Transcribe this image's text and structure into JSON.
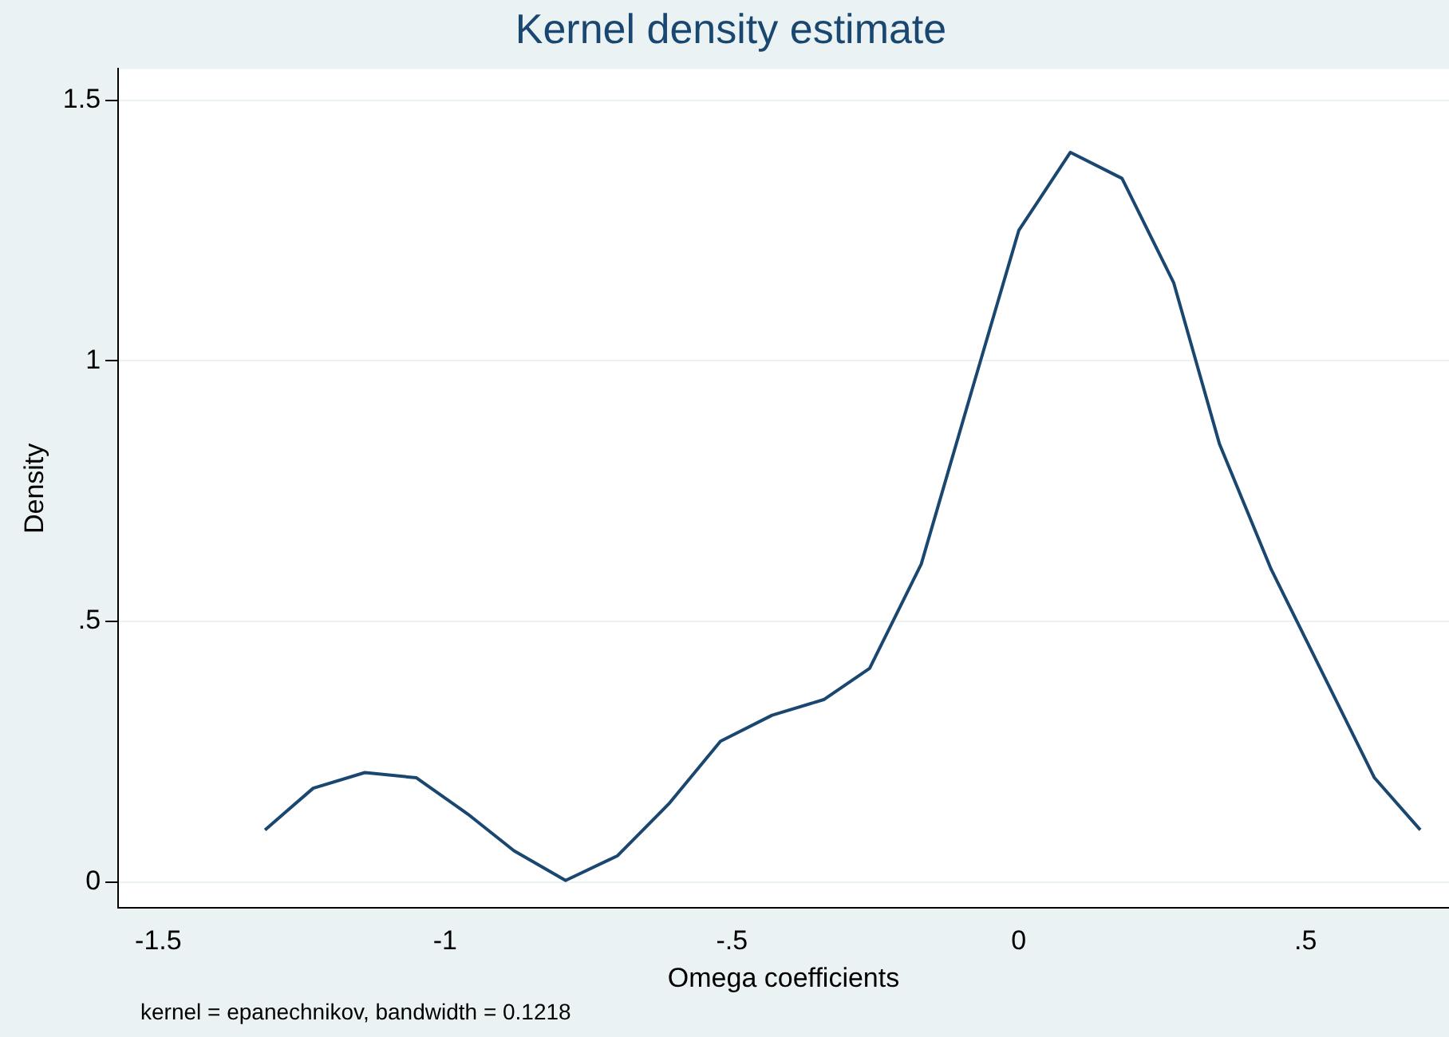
{
  "chart_data": {
    "type": "line",
    "title": "Kernel density estimate",
    "xlabel": "Omega coefficients",
    "ylabel": "Density",
    "annotations": [
      "kernel = epanechnikov, bandwidth = 0.1218"
    ],
    "x": [
      -1.314,
      -1.23,
      -1.14,
      -1.05,
      -0.96,
      -0.88,
      -0.79,
      -0.7,
      -0.61,
      -0.52,
      -0.43,
      -0.34,
      -0.26,
      -0.17,
      -0.08,
      0.0,
      0.09,
      0.18,
      0.27,
      0.35,
      0.44,
      0.53,
      0.62,
      0.7
    ],
    "series": [
      {
        "color": "#1a476f",
        "values": [
          0.1,
          0.18,
          0.21,
          0.2,
          0.13,
          0.06,
          0.003,
          0.05,
          0.15,
          0.27,
          0.32,
          0.35,
          0.41,
          0.61,
          0.95,
          1.25,
          1.4,
          1.35,
          1.15,
          0.84,
          0.6,
          0.4,
          0.2,
          0.1
        ]
      }
    ],
    "xlim": [
      -1.57,
      0.75
    ],
    "ylim": [
      -0.05,
      1.56
    ],
    "xticks": [
      -1.5,
      -1,
      {
        "value": -0.5,
        "label": "-.5"
      },
      0,
      {
        "value": 0.5,
        "label": ".5"
      }
    ],
    "yticks": [
      0,
      {
        "value": 0.5,
        "label": ".5"
      },
      1,
      1.5
    ],
    "grid": "y",
    "legend": false,
    "marker": "none",
    "line_style": "solid"
  }
}
